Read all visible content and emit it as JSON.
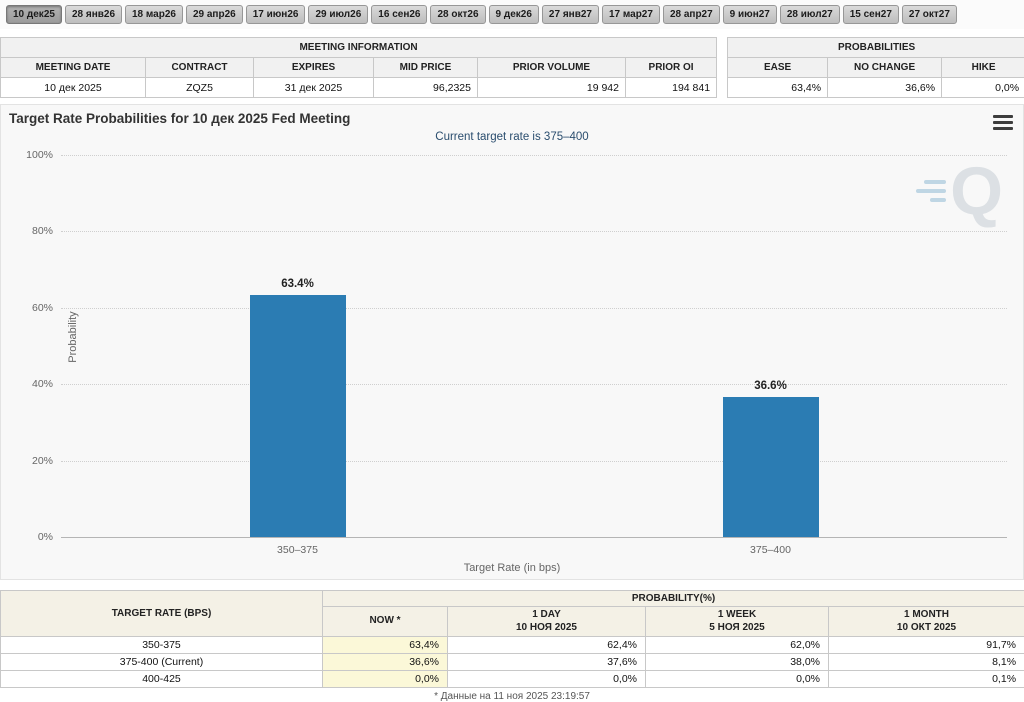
{
  "tabs": [
    {
      "label": "10 дек25",
      "active": true
    },
    {
      "label": "28 янв26",
      "active": false
    },
    {
      "label": "18 мар26",
      "active": false
    },
    {
      "label": "29 апр26",
      "active": false
    },
    {
      "label": "17 июн26",
      "active": false
    },
    {
      "label": "29 июл26",
      "active": false
    },
    {
      "label": "16 сен26",
      "active": false
    },
    {
      "label": "28 окт26",
      "active": false
    },
    {
      "label": "9 дек26",
      "active": false
    },
    {
      "label": "27 янв27",
      "active": false
    },
    {
      "label": "17 мар27",
      "active": false
    },
    {
      "label": "28 апр27",
      "active": false
    },
    {
      "label": "9 июн27",
      "active": false
    },
    {
      "label": "28 июл27",
      "active": false
    },
    {
      "label": "15 сен27",
      "active": false
    },
    {
      "label": "27 окт27",
      "active": false
    }
  ],
  "meeting_info": {
    "title": "MEETING INFORMATION",
    "headers": [
      "MEETING DATE",
      "CONTRACT",
      "EXPIRES",
      "MID PRICE",
      "PRIOR VOLUME",
      "PRIOR OI"
    ],
    "row": [
      "10 дек 2025",
      "ZQZ5",
      "31 дек 2025",
      "96,2325",
      "19 942",
      "194 841"
    ]
  },
  "probabilities": {
    "title": "PROBABILITIES",
    "headers": [
      "EASE",
      "NO CHANGE",
      "HIKE"
    ],
    "row": [
      "63,4%",
      "36,6%",
      "0,0%"
    ]
  },
  "chart_data": {
    "type": "bar",
    "title": "Target Rate Probabilities for 10 дек 2025 Fed Meeting",
    "subtitle": "Current target rate is 375–400",
    "categories": [
      "350–375",
      "375–400"
    ],
    "values": [
      63.4,
      36.6
    ],
    "labels": [
      "63.4%",
      "36.6%"
    ],
    "xlabel": "Target Rate (in bps)",
    "ylabel": "Probability",
    "ylim": [
      0,
      100
    ],
    "yticks": [
      "0%",
      "20%",
      "40%",
      "60%",
      "80%",
      "100%"
    ],
    "bar_color": "#2b7cb3",
    "grid": "dotted-horizontal",
    "legend": "none"
  },
  "bottom_table": {
    "rate_header": "TARGET RATE (BPS)",
    "group_header": "PROBABILITY(%)",
    "columns": [
      {
        "line1": "NOW *",
        "line2": ""
      },
      {
        "line1": "1 DAY",
        "line2": "10 НОЯ 2025"
      },
      {
        "line1": "1 WEEK",
        "line2": "5 НОЯ 2025"
      },
      {
        "line1": "1 MONTH",
        "line2": "10 ОКТ 2025"
      }
    ],
    "rows": [
      {
        "rate": "350-375",
        "values": [
          "63,4%",
          "62,4%",
          "62,0%",
          "91,7%"
        ]
      },
      {
        "rate": "375-400 (Current)",
        "values": [
          "36,6%",
          "37,6%",
          "38,0%",
          "8,1%"
        ]
      },
      {
        "rate": "400-425",
        "values": [
          "0,0%",
          "0,0%",
          "0,0%",
          "0,1%"
        ]
      }
    ]
  },
  "footer_note": "* Данные на 11 ноя 2025 23:19:57",
  "colors": {
    "bar": "#2b7cb3",
    "now_highlight": "#fbf8d8"
  }
}
